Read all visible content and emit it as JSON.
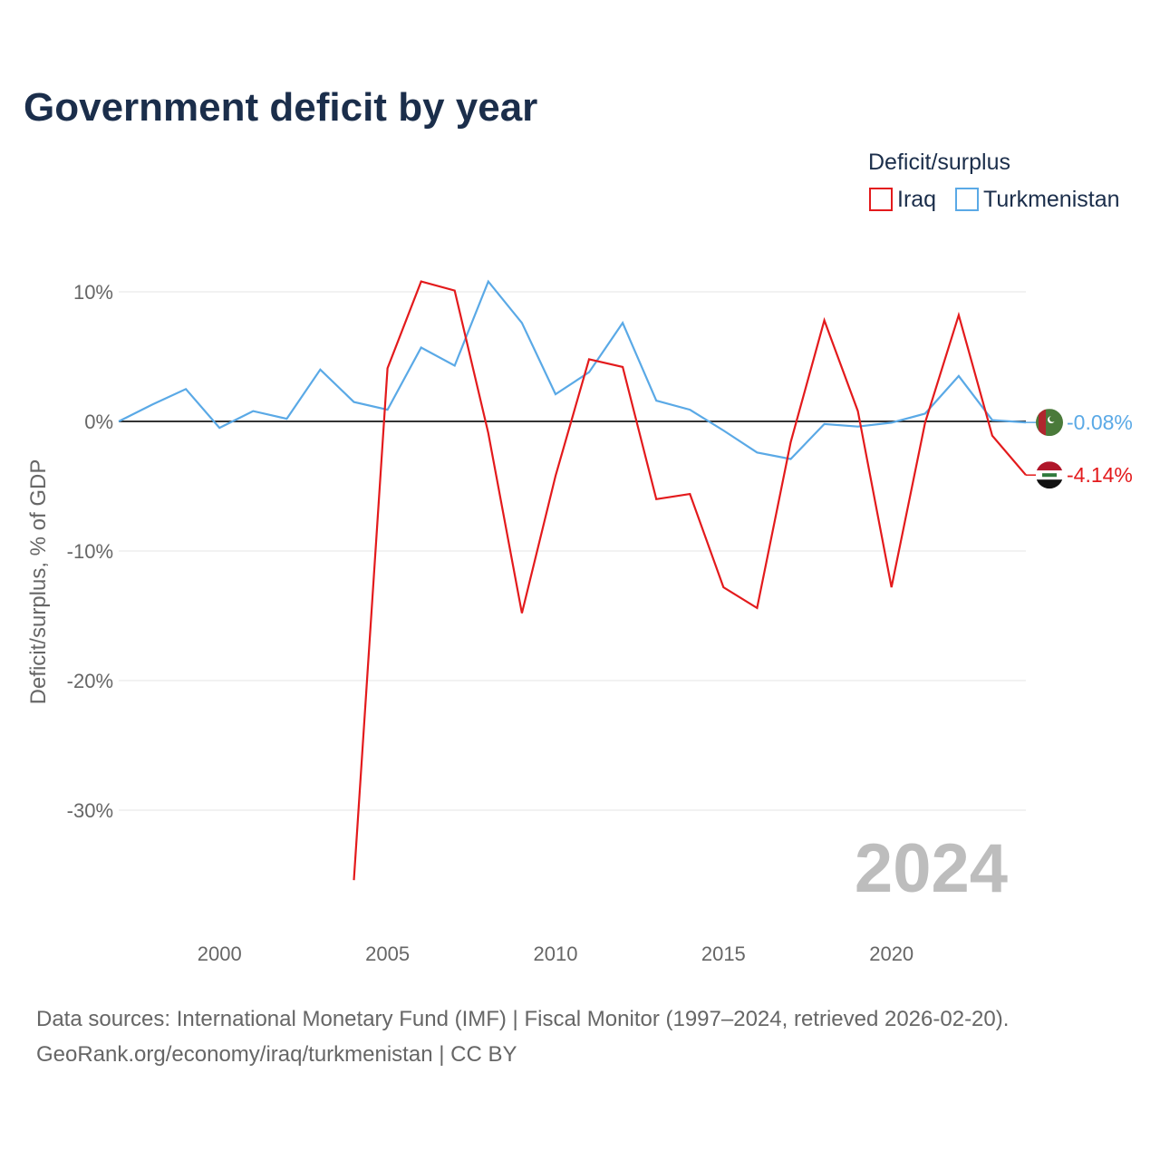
{
  "title": "Government deficit by year",
  "legend": {
    "title": "Deficit/surplus",
    "items": [
      {
        "name": "Iraq",
        "color": "#e31a1c"
      },
      {
        "name": "Turkmenistan",
        "color": "#5aa9e6"
      }
    ]
  },
  "year_watermark": "2024",
  "source": {
    "line1": "Data sources: International Monetary Fund (IMF) | Fiscal Monitor (1997–2024, retrieved 2026-02-20).",
    "line2": "GeoRank.org/economy/iraq/turkmenistan | CC BY"
  },
  "chart_data": {
    "type": "line",
    "title": "Government deficit by year",
    "xlabel": "",
    "ylabel": "Deficit/surplus, % of GDP",
    "xlim": [
      1997,
      2024
    ],
    "ylim": [
      -38,
      13
    ],
    "x_ticks": [
      2000,
      2005,
      2010,
      2015,
      2020
    ],
    "y_ticks": [
      10,
      0,
      -10,
      -20,
      -30
    ],
    "y_tick_labels": [
      "10%",
      "0%",
      "-10%",
      "-20%",
      "-30%"
    ],
    "grid": true,
    "legend_position": "top-right",
    "series": [
      {
        "name": "Iraq",
        "color": "#e31a1c",
        "x": [
          2004,
          2005,
          2006,
          2007,
          2008,
          2009,
          2010,
          2011,
          2012,
          2013,
          2014,
          2015,
          2016,
          2017,
          2018,
          2019,
          2020,
          2021,
          2022,
          2023,
          2024
        ],
        "values": [
          -35.4,
          4.1,
          10.8,
          10.1,
          -0.9,
          -14.8,
          -4.2,
          4.8,
          4.2,
          -6.0,
          -5.6,
          -12.8,
          -14.4,
          -1.6,
          7.8,
          0.8,
          -12.8,
          -0.1,
          8.2,
          -1.1,
          -4.14
        ],
        "end_label": "-4.14%"
      },
      {
        "name": "Turkmenistan",
        "color": "#5aa9e6",
        "x": [
          1997,
          1998,
          1999,
          2000,
          2001,
          2002,
          2003,
          2004,
          2005,
          2006,
          2007,
          2008,
          2009,
          2010,
          2011,
          2012,
          2013,
          2014,
          2015,
          2016,
          2017,
          2018,
          2019,
          2020,
          2021,
          2022,
          2023,
          2024
        ],
        "values": [
          0.0,
          1.3,
          2.5,
          -0.5,
          0.8,
          0.2,
          4.0,
          1.5,
          0.9,
          5.7,
          4.3,
          10.8,
          7.6,
          2.1,
          3.8,
          7.6,
          1.6,
          0.9,
          -0.7,
          -2.4,
          -2.9,
          -0.2,
          -0.4,
          -0.1,
          0.6,
          3.5,
          0.1,
          -0.08
        ],
        "end_label": "-0.08%"
      }
    ]
  }
}
